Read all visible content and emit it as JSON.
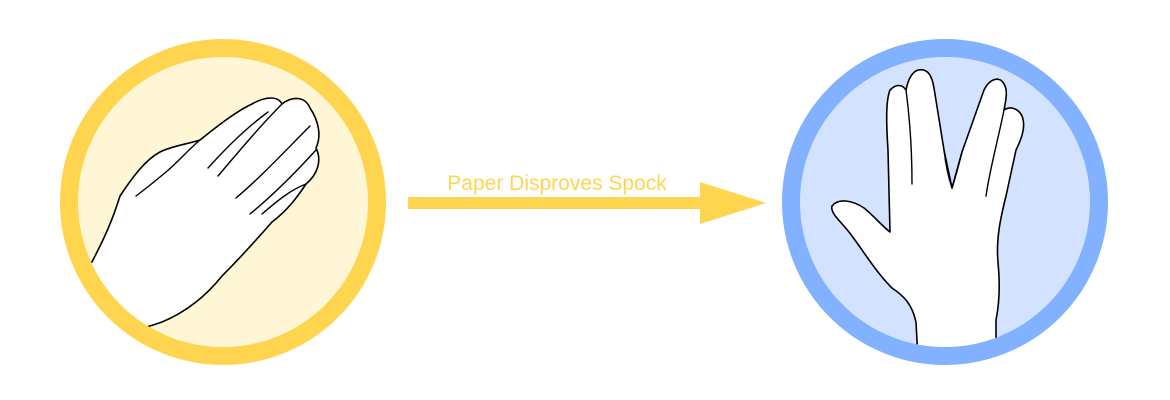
{
  "diagram": {
    "relation_label": "Paper Disproves Spock",
    "from": {
      "icon": "paper-hand-icon",
      "ring_color": "#FFD54F",
      "fill_color": "#FFF6D5"
    },
    "to": {
      "icon": "spock-hand-icon",
      "ring_color": "#82B1FF",
      "fill_color": "#D3E2FF"
    },
    "arrow_color": "#FFD54F",
    "label_color": "#FFD54F",
    "hand_stroke_color": "#000000",
    "hand_fill_color": "#FFFFFF"
  }
}
